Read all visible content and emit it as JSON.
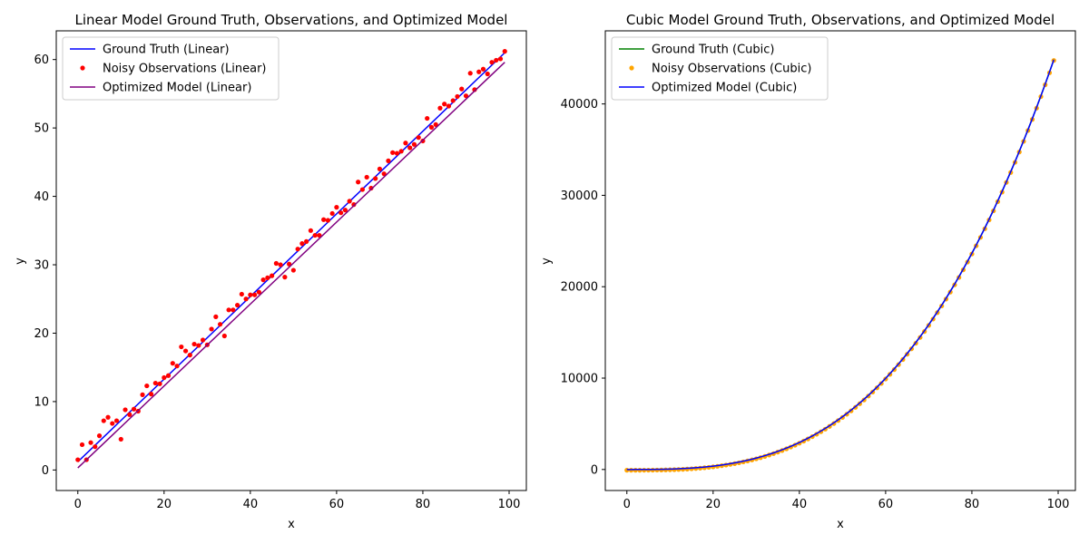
{
  "chart_data": [
    {
      "type": "line",
      "title": "Linear Model Ground Truth, Observations, and Optimized Model",
      "xlabel": "x",
      "ylabel": "y",
      "xlim": [
        -5,
        104
      ],
      "ylim": [
        -3,
        64.2
      ],
      "xticks": [
        0,
        20,
        40,
        60,
        80,
        100
      ],
      "yticks": [
        0,
        10,
        20,
        30,
        40,
        50,
        60
      ],
      "grid": false,
      "legend_position": "top-left",
      "series": [
        {
          "name": "Ground Truth (Linear)",
          "kind": "line",
          "color": "#0000ff",
          "x": [
            0,
            99
          ],
          "y": [
            1.2,
            61.0
          ]
        },
        {
          "name": "Noisy Observations (Linear)",
          "kind": "scatter",
          "color": "#ff0000",
          "x": [
            0,
            1,
            2,
            3,
            4,
            5,
            6,
            7,
            8,
            9,
            10,
            11,
            12,
            13,
            14,
            15,
            16,
            17,
            18,
            19,
            20,
            21,
            22,
            23,
            24,
            25,
            26,
            27,
            28,
            29,
            30,
            31,
            32,
            33,
            34,
            35,
            36,
            37,
            38,
            39,
            40,
            41,
            42,
            43,
            44,
            45,
            46,
            47,
            48,
            49,
            50,
            51,
            52,
            53,
            54,
            55,
            56,
            57,
            58,
            59,
            60,
            61,
            62,
            63,
            64,
            65,
            66,
            67,
            68,
            69,
            70,
            71,
            72,
            73,
            74,
            75,
            76,
            77,
            78,
            79,
            80,
            81,
            82,
            83,
            84,
            85,
            86,
            87,
            88,
            89,
            90,
            91,
            92,
            93,
            94,
            95,
            96,
            97,
            98,
            99
          ],
          "y": [
            1.5,
            3.7,
            1.5,
            4.0,
            3.4,
            5.0,
            7.2,
            7.7,
            6.8,
            7.2,
            4.5,
            8.8,
            8.1,
            8.9,
            8.6,
            11.0,
            12.3,
            11.1,
            12.7,
            12.6,
            13.5,
            13.8,
            15.6,
            15.2,
            18.0,
            17.4,
            16.8,
            18.4,
            18.2,
            19.0,
            18.3,
            20.6,
            22.4,
            21.3,
            19.6,
            23.4,
            23.4,
            24.1,
            25.7,
            25.0,
            25.6,
            25.6,
            26.0,
            27.8,
            28.1,
            28.4,
            30.2,
            30.0,
            28.2,
            30.1,
            29.2,
            32.3,
            33.1,
            33.4,
            35.0,
            34.3,
            34.3,
            36.6,
            36.5,
            37.5,
            38.4,
            37.6,
            38.0,
            39.3,
            38.8,
            42.1,
            41.0,
            42.8,
            41.2,
            42.6,
            44.0,
            43.3,
            45.2,
            46.4,
            46.3,
            46.6,
            47.8,
            47.1,
            47.6,
            48.6,
            48.1,
            51.4,
            50.1,
            50.5,
            52.9,
            53.5,
            53.2,
            54.0,
            54.6,
            55.7,
            54.7,
            58.0,
            55.6,
            58.2,
            58.6,
            57.9,
            59.6,
            59.9,
            60.1,
            61.2
          ]
        },
        {
          "name": "Optimized Model (Linear)",
          "kind": "line",
          "color": "#800080",
          "x": [
            0,
            99
          ],
          "y": [
            0.3,
            59.6
          ]
        }
      ]
    },
    {
      "type": "line",
      "title": "Cubic Model Ground Truth, Observations, and Optimized Model",
      "xlabel": "x",
      "ylabel": "y",
      "xlim": [
        -5,
        104
      ],
      "ylim": [
        -2300,
        48000
      ],
      "xticks": [
        0,
        20,
        40,
        60,
        80,
        100
      ],
      "yticks": [
        0,
        10000,
        20000,
        30000,
        40000
      ],
      "grid": false,
      "legend_position": "top-left",
      "series": [
        {
          "name": "Ground Truth (Cubic)",
          "kind": "line",
          "color": "#008000",
          "formula_coefficients": [
            0.04621,
            0,
            0,
            0
          ],
          "x_range": [
            0,
            99
          ]
        },
        {
          "name": "Noisy Observations (Cubic)",
          "kind": "scatter",
          "color": "#ffa500",
          "formula_coefficients": [
            0.04621,
            0,
            0,
            -80
          ],
          "x_range": [
            0,
            99
          ]
        },
        {
          "name": "Optimized Model (Cubic)",
          "kind": "line",
          "color": "#0000ff",
          "formula_coefficients": [
            0.04621,
            0,
            0,
            0
          ],
          "x_range": [
            0,
            99
          ]
        }
      ]
    }
  ]
}
